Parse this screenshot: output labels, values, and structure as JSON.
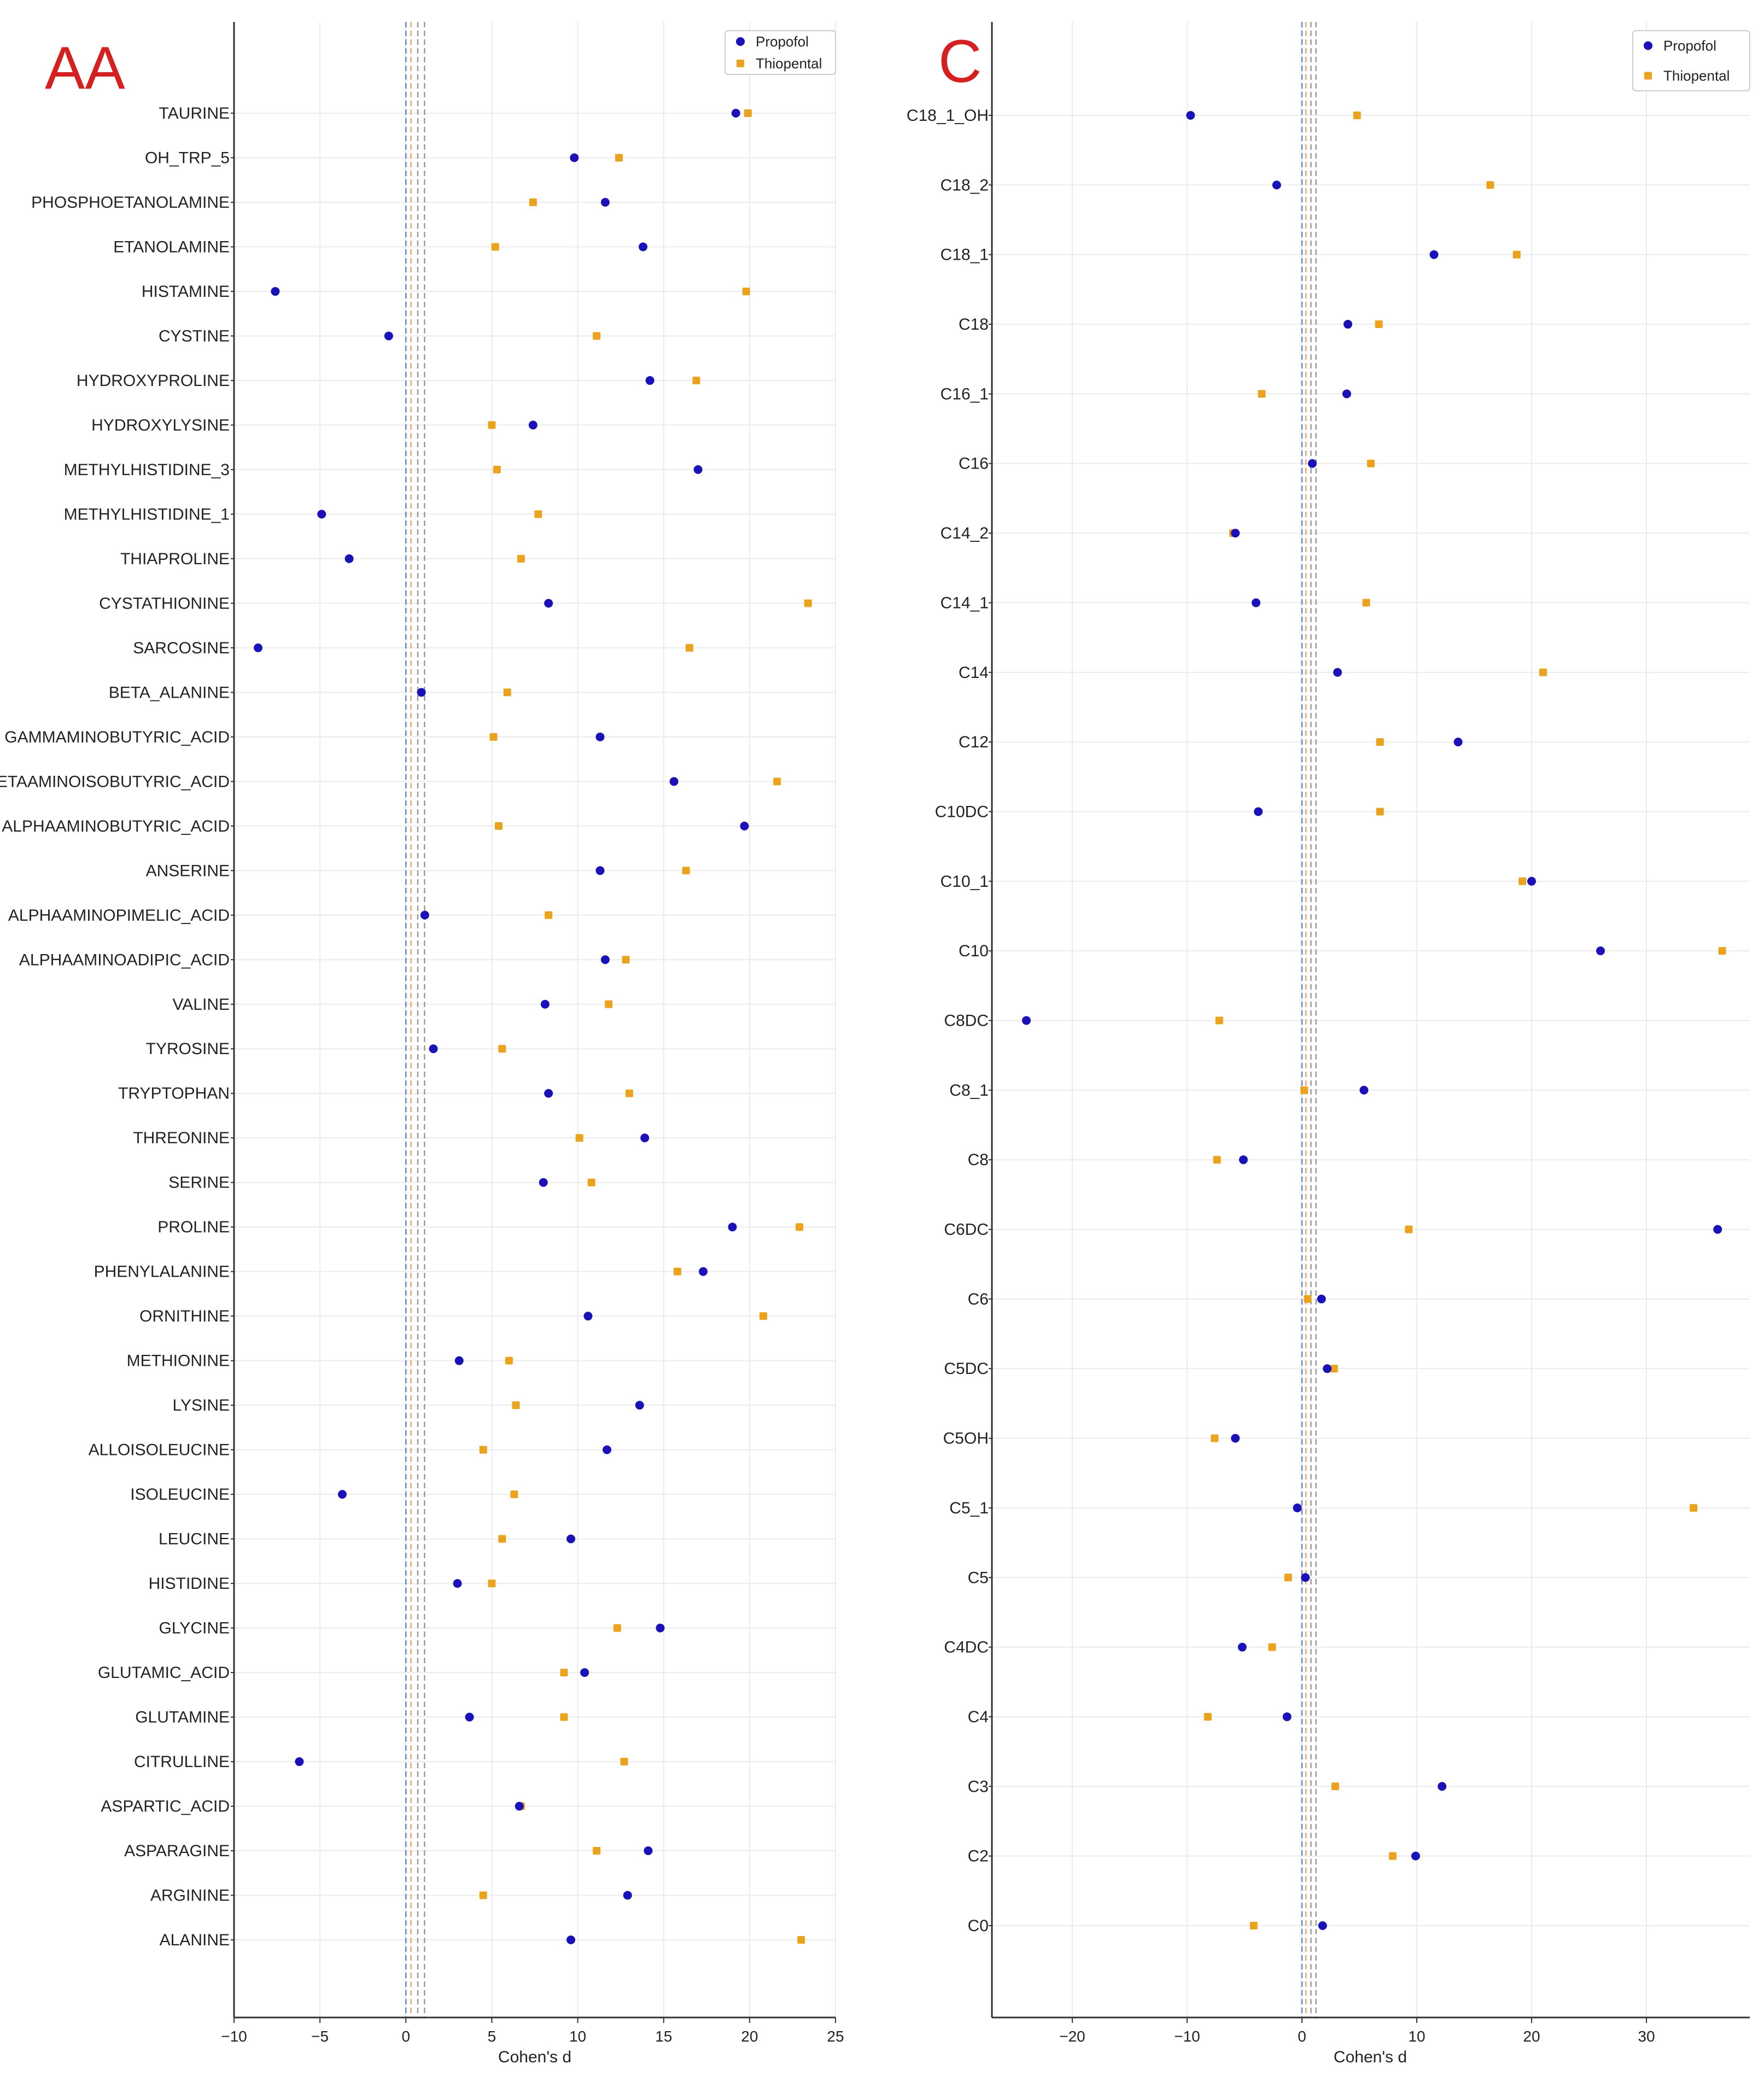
{
  "colors": {
    "propofol": "#1a12b8",
    "thiopental": "#eba21c",
    "panel_letter": "#d42020",
    "grid": "#ebebeb",
    "axis": "#333333",
    "ref_blue": "#6b7fd6",
    "ref_orange": "#e8a860",
    "ref_gray": "#9a9a9a"
  },
  "chart_data": [
    {
      "type": "scatter",
      "panel_label": "AA",
      "xlabel": "Cohen's d",
      "xlim": [
        -10,
        25
      ],
      "xticks": [
        -10,
        -5,
        0,
        5,
        10,
        15,
        20,
        25
      ],
      "xtick_labels": [
        "−10",
        "−5",
        "0",
        "5",
        "10",
        "15",
        "20",
        "25"
      ],
      "reference_lines": [
        0,
        0.2,
        0.5,
        0.8
      ],
      "legend": {
        "position": "top-right",
        "entries": [
          "Propofol",
          "Thiopental"
        ]
      },
      "categories": [
        "TAURINE",
        "OH_TRP_5",
        "PHOSPHOETANOLAMINE",
        "ETANOLAMINE",
        "HISTAMINE",
        "CYSTINE",
        "HYDROXYPROLINE",
        "HYDROXYLYSINE",
        "METHYLHISTIDINE_3",
        "METHYLHISTIDINE_1",
        "THIAPROLINE",
        "CYSTATHIONINE",
        "SARCOSINE",
        "BETA_ALANINE",
        "GAMMAMINOBUTYRIC_ACID",
        "BETAAMINOISOBUTYRIC_ACID",
        "ALPHAAMINOBUTYRIC_ACID",
        "ANSERINE",
        "ALPHAAMINOPIMELIC_ACID",
        "ALPHAAMINOADIPIC_ACID",
        "VALINE",
        "TYROSINE",
        "TRYPTOPHAN",
        "THREONINE",
        "SERINE",
        "PROLINE",
        "PHENYLALANINE",
        "ORNITHINE",
        "METHIONINE",
        "LYSINE",
        "ALLOISOLEUCINE",
        "ISOLEUCINE",
        "LEUCINE",
        "HISTIDINE",
        "GLYCINE",
        "GLUTAMIC_ACID",
        "GLUTAMINE",
        "CITRULLINE",
        "ASPARTIC_ACID",
        "ASPARAGINE",
        "ARGININE",
        "ALANINE"
      ],
      "series": [
        {
          "name": "Propofol",
          "values": [
            19.2,
            9.8,
            11.6,
            13.8,
            -7.6,
            -1.0,
            14.2,
            7.4,
            17.0,
            -4.9,
            -3.3,
            8.3,
            -8.6,
            0.9,
            11.3,
            15.6,
            19.7,
            11.3,
            1.1,
            11.6,
            8.1,
            1.6,
            8.3,
            13.9,
            8.0,
            19.0,
            17.3,
            10.6,
            3.1,
            13.6,
            11.7,
            -3.7,
            9.6,
            3.0,
            14.8,
            10.4,
            3.7,
            -6.2,
            6.6,
            14.1,
            12.9,
            9.6
          ]
        },
        {
          "name": "Thiopental",
          "values": [
            19.9,
            12.4,
            7.4,
            5.2,
            19.8,
            11.1,
            16.9,
            5.0,
            5.3,
            7.7,
            6.7,
            23.4,
            16.5,
            5.9,
            5.1,
            21.6,
            5.4,
            16.3,
            8.3,
            12.8,
            11.8,
            5.6,
            13.0,
            10.1,
            10.8,
            22.9,
            15.8,
            20.8,
            6.0,
            6.4,
            4.5,
            6.3,
            5.6,
            5.0,
            12.3,
            9.2,
            9.2,
            12.7,
            6.7,
            11.1,
            4.5,
            23.0
          ]
        }
      ]
    },
    {
      "type": "scatter",
      "panel_label": "C",
      "xlabel": "Cohen's d",
      "xlim": [
        -27,
        39
      ],
      "xticks": [
        -20,
        -10,
        0,
        10,
        20,
        30
      ],
      "xtick_labels": [
        "−20",
        "−10",
        "0",
        "10",
        "20",
        "30"
      ],
      "reference_lines": [
        0,
        0.2,
        0.5,
        0.8
      ],
      "legend": {
        "position": "top-right",
        "entries": [
          "Propofol",
          "Thiopental"
        ]
      },
      "categories": [
        "C18_1_OH",
        "C18_2",
        "C18_1",
        "C18",
        "C16_1",
        "C16",
        "C14_2",
        "C14_1",
        "C14",
        "C12",
        "C10DC",
        "C10_1",
        "C10",
        "C8DC",
        "C8_1",
        "C8",
        "C6DC",
        "C6",
        "C5DC",
        "C5OH",
        "C5_1",
        "C5",
        "C4DC",
        "C4",
        "C3",
        "C2",
        "C0"
      ],
      "series": [
        {
          "name": "Propofol",
          "values": [
            -9.7,
            -2.2,
            11.5,
            4.0,
            3.9,
            0.9,
            -5.8,
            -4.0,
            3.1,
            13.6,
            -3.8,
            20.0,
            26.0,
            -24.0,
            5.4,
            -5.1,
            36.2,
            1.7,
            2.2,
            -5.8,
            -0.4,
            0.3,
            -5.2,
            -1.3,
            12.2,
            9.9,
            1.8
          ]
        },
        {
          "name": "Thiopental",
          "values": [
            4.8,
            16.4,
            18.7,
            6.7,
            -3.5,
            6.0,
            -6.0,
            5.6,
            21.0,
            6.8,
            6.8,
            19.2,
            36.6,
            -7.2,
            0.2,
            -7.4,
            9.3,
            0.5,
            2.8,
            -7.6,
            34.1,
            -1.2,
            -2.6,
            -8.2,
            2.9,
            7.9,
            -4.2
          ]
        }
      ]
    }
  ]
}
